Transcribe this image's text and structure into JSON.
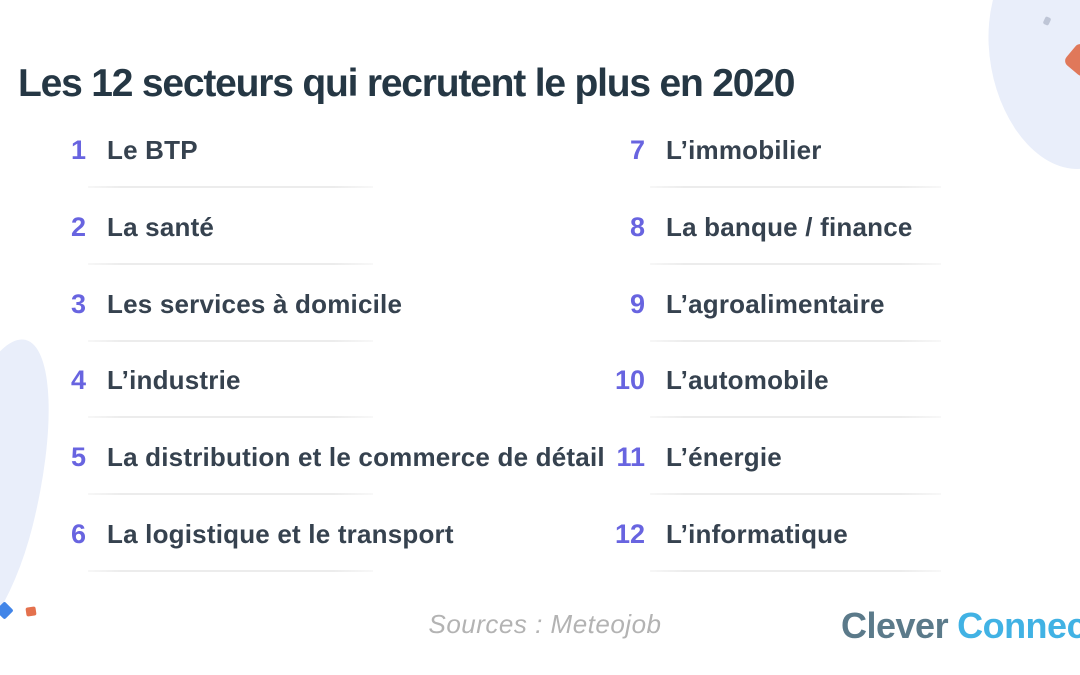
{
  "title": "Les 12 secteurs qui recrutent le plus en 2020",
  "items": [
    {
      "number": "1",
      "label": "Le BTP"
    },
    {
      "number": "2",
      "label": "La santé"
    },
    {
      "number": "3",
      "label": "Les services à domicile"
    },
    {
      "number": "4",
      "label": "L’industrie"
    },
    {
      "number": "5",
      "label": "La distribution et le commerce de détail"
    },
    {
      "number": "6",
      "label": "La logistique et le transport"
    },
    {
      "number": "7",
      "label": "L’immobilier"
    },
    {
      "number": "8",
      "label": "La banque / finance"
    },
    {
      "number": "9",
      "label": "L’agroalimentaire"
    },
    {
      "number": "10",
      "label": "L’automobile"
    },
    {
      "number": "11",
      "label": "L’énergie"
    },
    {
      "number": "12",
      "label": "L’informatique"
    }
  ],
  "footer": {
    "sources": "Sources : Meteojob",
    "logo": {
      "part1": "Clever",
      "part2": "Connect"
    }
  },
  "colors": {
    "accent": "#6864e0",
    "title": "#253744",
    "text": "#36424f",
    "divider": "#ececec",
    "blob": "#e9eefa",
    "muted": "#b3b3b3",
    "logo_slate": "#5b7a8a",
    "logo_blue": "#41b2e4",
    "dot_blue": "#4285e8",
    "dot_orange": "#e4714d",
    "dot_orange_strong": "#e0785a",
    "dot_gray": "#9aa4b8"
  }
}
